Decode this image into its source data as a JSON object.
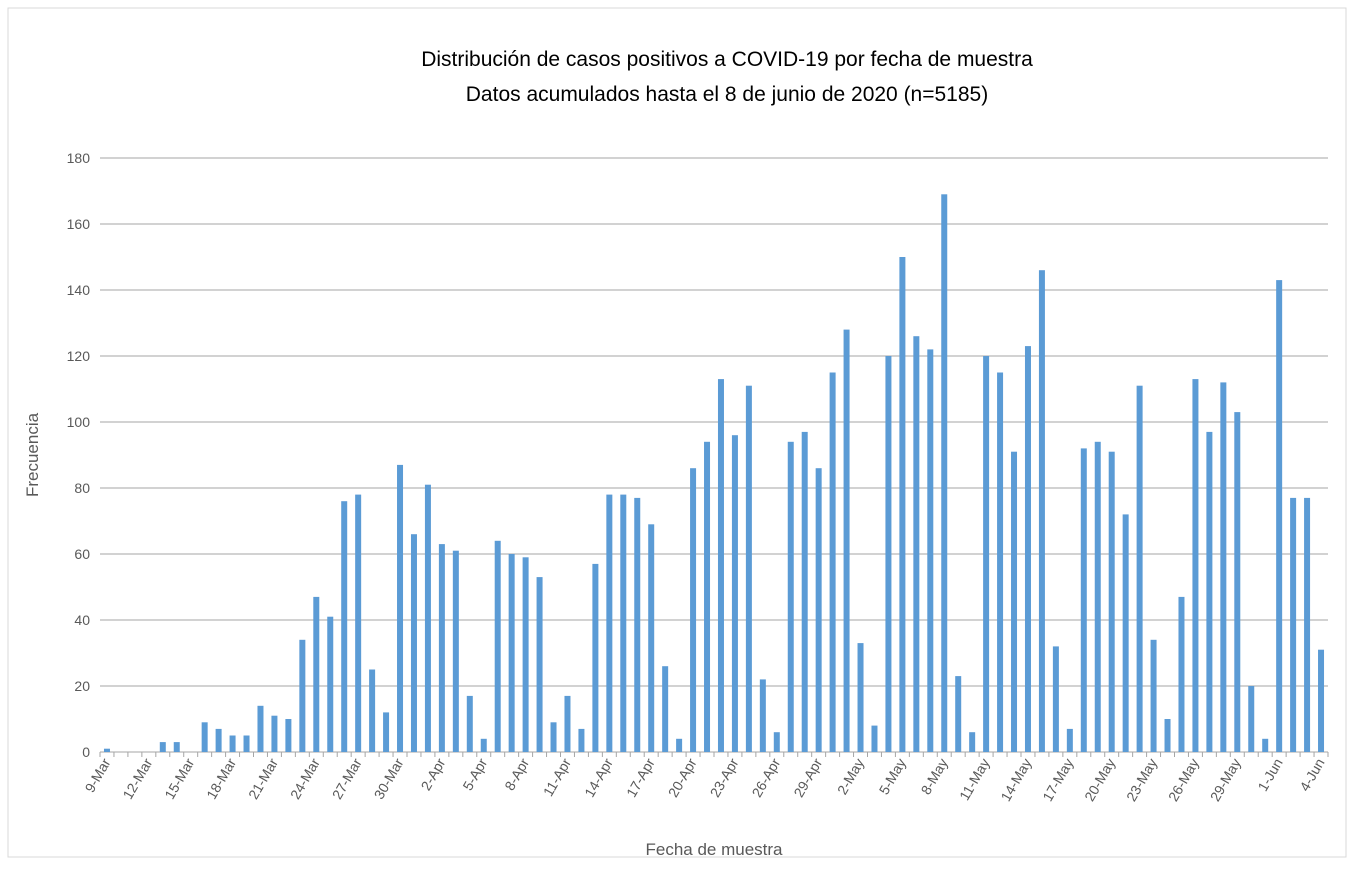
{
  "chart_data": {
    "type": "bar",
    "title": "Distribución de casos positivos a COVID-19 por fecha de muestra",
    "subtitle": "Datos acumulados hasta el 8 de junio de 2020  (n=5185)",
    "x_label": "Fecha de muestra",
    "y_label": "Frecuencia",
    "categories": [
      "9-Mar",
      null,
      null,
      "12-Mar",
      null,
      null,
      "15-Mar",
      null,
      null,
      "18-Mar",
      null,
      null,
      "21-Mar",
      null,
      null,
      "24-Mar",
      null,
      null,
      "27-Mar",
      null,
      null,
      "30-Mar",
      null,
      null,
      "2-Apr",
      null,
      null,
      "5-Apr",
      null,
      null,
      "8-Apr",
      null,
      null,
      "11-Apr",
      null,
      null,
      "14-Apr",
      null,
      null,
      "17-Apr",
      null,
      null,
      "20-Apr",
      null,
      null,
      "23-Apr",
      null,
      null,
      "26-Apr",
      null,
      null,
      "29-Apr",
      null,
      null,
      "2-May",
      null,
      null,
      "5-May",
      null,
      null,
      "8-May",
      null,
      null,
      "11-May",
      null,
      null,
      "14-May",
      null,
      null,
      "17-May",
      null,
      null,
      "20-May",
      null,
      null,
      "23-May",
      null,
      null,
      "26-May",
      null,
      null,
      "29-May",
      null,
      null,
      "1-Jun",
      null,
      null,
      "4-Jun"
    ],
    "values": [
      1,
      0,
      0,
      0,
      3,
      3,
      0,
      9,
      7,
      5,
      5,
      14,
      11,
      10,
      34,
      47,
      41,
      76,
      78,
      25,
      12,
      87,
      66,
      81,
      63,
      61,
      17,
      4,
      64,
      60,
      59,
      53,
      9,
      17,
      7,
      57,
      78,
      78,
      77,
      69,
      26,
      4,
      86,
      94,
      113,
      96,
      111,
      22,
      6,
      94,
      97,
      86,
      115,
      128,
      33,
      8,
      120,
      150,
      126,
      122,
      169,
      23,
      6,
      120,
      115,
      91,
      123,
      146,
      32,
      7,
      92,
      94,
      91,
      72,
      111,
      34,
      10,
      47,
      113,
      97,
      112,
      103,
      20,
      4,
      143,
      77,
      77,
      31
    ],
    "color": "#5b9bd5",
    "ylim": [
      0,
      180
    ],
    "yticks": [
      0,
      20,
      40,
      60,
      80,
      100,
      120,
      140,
      160,
      180
    ],
    "grid": true
  }
}
